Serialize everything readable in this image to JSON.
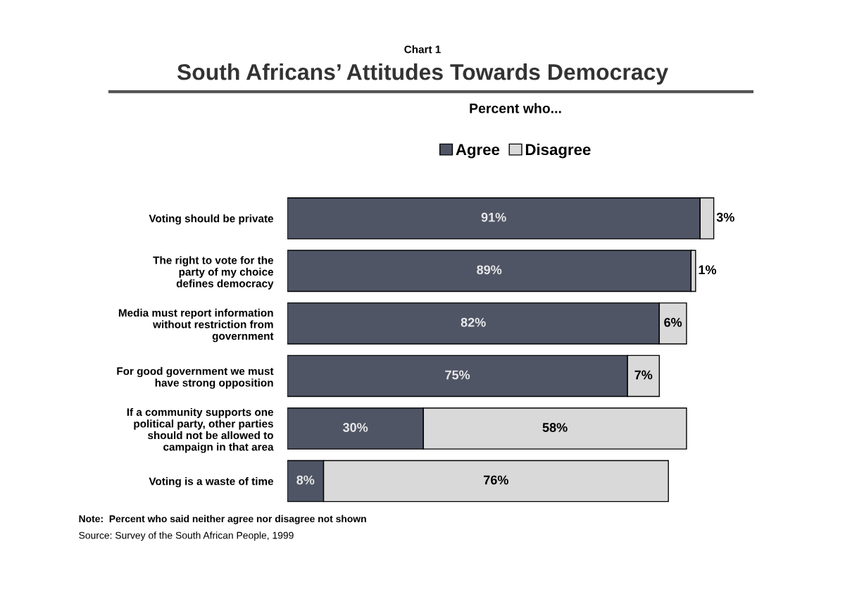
{
  "chart_data": {
    "type": "bar",
    "orientation": "horizontal",
    "stacked": true,
    "title": "Chart 1",
    "subtitle": "South Africans’ Attitudes Towards Democracy",
    "legend_title": "Percent who...",
    "categories": [
      "Voting should be private",
      "The right to vote for the\nparty of my choice\ndefines democracy",
      "Media must report information\nwithout restriction from\ngovernment",
      "For good government we must\nhave strong opposition",
      "If a community supports one\npolitical party, other parties\nshould not be allowed to\ncampaign in that area",
      "Voting is a waste of time"
    ],
    "series": [
      {
        "name": "Agree",
        "color": "#4f5565",
        "values": [
          91,
          89,
          82,
          75,
          30,
          8
        ],
        "value_labels": [
          "91%",
          "89%",
          "82%",
          "75%",
          "30%",
          "8%"
        ]
      },
      {
        "name": "Disagree",
        "color": "#d9d9d9",
        "values": [
          3,
          1,
          6,
          7,
          58,
          76
        ],
        "value_labels": [
          "3%",
          "1%",
          "6%",
          "7%",
          "58%",
          "76%"
        ]
      }
    ],
    "legend": "top",
    "grid": false,
    "annotations": [
      "Note:  Percent who said neither agree nor disagree not shown",
      "Source: Survey of the South African People, 1999"
    ]
  }
}
